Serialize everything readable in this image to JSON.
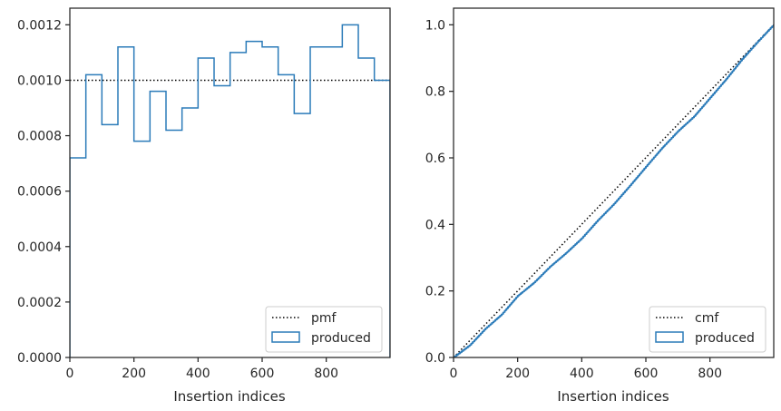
{
  "chart_data": [
    {
      "type": "histogram-step",
      "xlabel": "Insertion indices",
      "ylabel": "",
      "xlim": [
        0,
        999
      ],
      "ylim": [
        0,
        0.00126
      ],
      "xticks": [
        0,
        200,
        400,
        600,
        800
      ],
      "xtick_labels": [
        "0",
        "200",
        "400",
        "600",
        "800"
      ],
      "yticks": [
        0,
        0.0002,
        0.0004,
        0.0006,
        0.0008,
        0.001,
        0.0012
      ],
      "ytick_labels": [
        "0.0000",
        "0.0002",
        "0.0004",
        "0.0006",
        "0.0008",
        "0.0010",
        "0.0012"
      ],
      "grid": false,
      "legend_position": "lower right",
      "series": [
        {
          "name": "pmf",
          "style": "dotted",
          "color": "#000000",
          "x": [
            0,
            999
          ],
          "y": [
            0.001,
            0.001
          ]
        },
        {
          "name": "produced",
          "style": "step",
          "color": "#2b7bb9",
          "bin_edges": [
            0,
            50,
            100,
            150,
            200,
            250,
            300,
            350,
            400,
            450,
            500,
            550,
            600,
            650,
            700,
            750,
            800,
            850,
            900,
            950,
            999
          ],
          "values": [
            0.00072,
            0.00102,
            0.00084,
            0.00112,
            0.00078,
            0.00096,
            0.00082,
            0.0009,
            0.00108,
            0.00098,
            0.0011,
            0.00114,
            0.00112,
            0.00102,
            0.00088,
            0.00112,
            0.00112,
            0.0012,
            0.00108,
            0.001
          ]
        }
      ]
    },
    {
      "type": "line",
      "xlabel": "Insertion indices",
      "ylabel": "",
      "xlim": [
        0,
        999
      ],
      "ylim": [
        0,
        1.05
      ],
      "xticks": [
        0,
        200,
        400,
        600,
        800
      ],
      "xtick_labels": [
        "0",
        "200",
        "400",
        "600",
        "800"
      ],
      "yticks": [
        0,
        0.2,
        0.4,
        0.6,
        0.8,
        1.0
      ],
      "ytick_labels": [
        "0.0",
        "0.2",
        "0.4",
        "0.6",
        "0.8",
        "1.0"
      ],
      "grid": false,
      "legend_position": "lower right",
      "series": [
        {
          "name": "cmf",
          "style": "dotted",
          "color": "#000000",
          "x": [
            0,
            999
          ],
          "y": [
            0,
            1.0
          ]
        },
        {
          "name": "produced",
          "style": "step",
          "color": "#2b7bb9",
          "x": [
            0,
            50,
            100,
            150,
            200,
            250,
            300,
            350,
            400,
            450,
            500,
            550,
            600,
            650,
            700,
            750,
            800,
            850,
            900,
            950,
            999
          ],
          "y": [
            0,
            0.036,
            0.087,
            0.129,
            0.185,
            0.224,
            0.272,
            0.313,
            0.358,
            0.412,
            0.461,
            0.516,
            0.573,
            0.629,
            0.68,
            0.724,
            0.78,
            0.836,
            0.896,
            0.95,
            1.0
          ]
        }
      ]
    }
  ]
}
